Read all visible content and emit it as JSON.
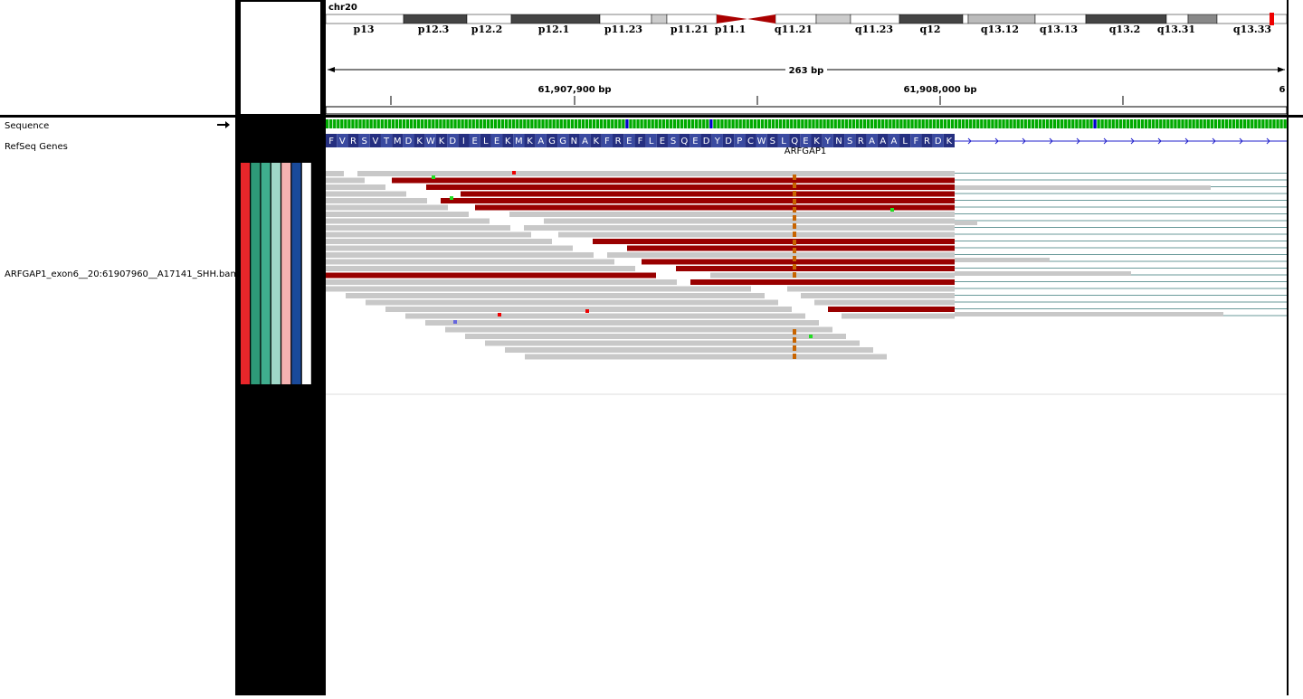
{
  "ideogram": {
    "chromosome": "chr20",
    "bands": [
      "p13",
      "p12.3",
      "p12.2",
      "p12.1",
      "p11.23",
      "p11.21",
      "p11.1",
      "q11.21",
      "q11.23",
      "q12",
      "q13.12",
      "q13.13",
      "q13.2",
      "q13.31",
      "q13.33"
    ]
  },
  "ruler": {
    "span": "263 bp",
    "ticks": [
      "61,907,900 bp",
      "61,908,000 bp",
      "6"
    ]
  },
  "tracks": {
    "sequence": "Sequence",
    "refseq": "RefSeq Genes",
    "alignment": "ARFGAP1_exon6__20:61907960__A17141_SHH.bam"
  },
  "gene": {
    "name": "ARFGAP1",
    "amino_acids": [
      "F",
      "V",
      "R",
      "S",
      "V",
      "T",
      "M",
      "D",
      "K",
      "W",
      "K",
      "D",
      "I",
      "E",
      "L",
      "E",
      "K",
      "M",
      "K",
      "A",
      "G",
      "G",
      "N",
      "A",
      "K",
      "F",
      "R",
      "E",
      "F",
      "L",
      "E",
      "S",
      "Q",
      "E",
      "D",
      "Y",
      "D",
      "P",
      "C",
      "W",
      "S",
      "L",
      "Q",
      "E",
      "K",
      "Y",
      "N",
      "S",
      "R",
      "A",
      "A",
      "A",
      "L",
      "F",
      "R",
      "D",
      "K"
    ]
  }
}
